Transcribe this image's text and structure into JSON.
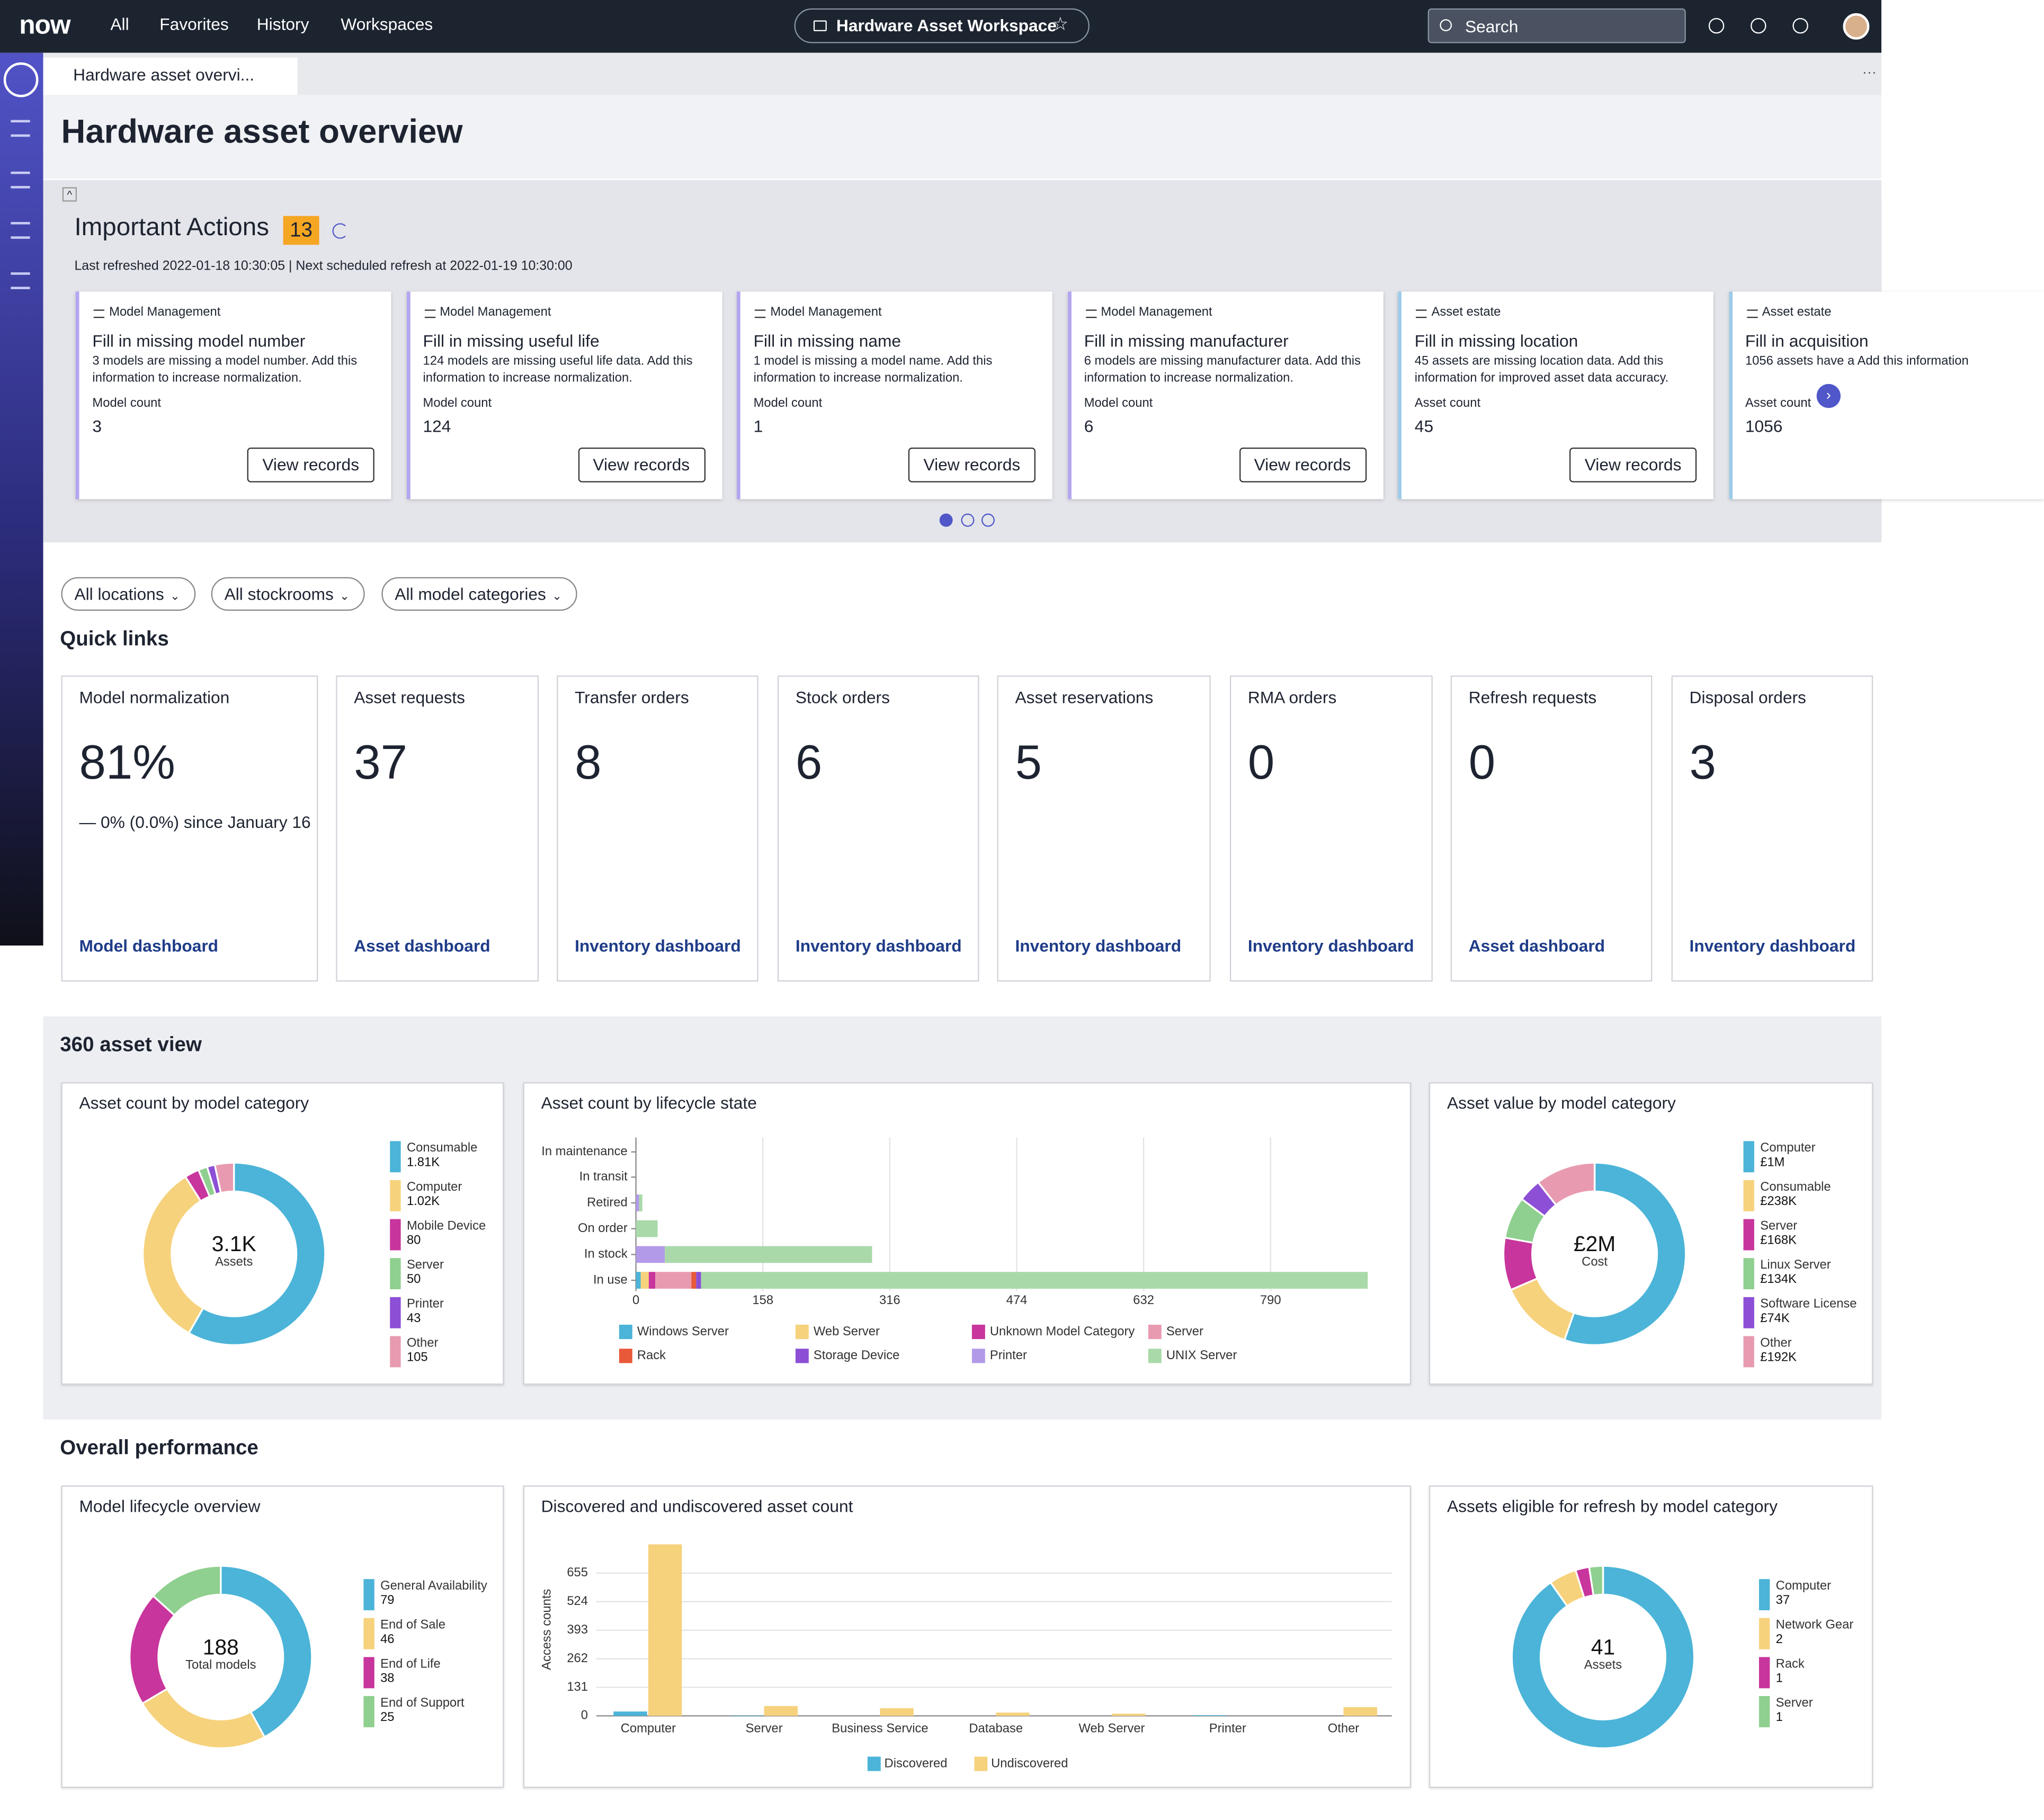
{
  "nav": {
    "logo": "now",
    "items": [
      "All",
      "Favorites",
      "History",
      "Workspaces"
    ],
    "workspace": "Hardware Asset Workspace",
    "search": "Search"
  },
  "tab": "Hardware asset overvi...",
  "page_title": "Hardware asset overview",
  "actions": {
    "title": "Important Actions",
    "count": 13,
    "refreshed": "Last refreshed 2022-01-18 10:30:05 | Next scheduled refresh at 2022-01-19 10:30:00",
    "cards": [
      {
        "category": "Model Management",
        "title": "Fill in missing model number",
        "description": "3 models are missing a model number. Add this information to increase normalization.",
        "metric_label": "Model count",
        "metric": 3,
        "button": "View records"
      },
      {
        "category": "Model Management",
        "title": "Fill in missing useful life",
        "description": "124 models are missing useful life data. Add this information to increase normalization.",
        "metric_label": "Model count",
        "metric": 124,
        "button": "View records"
      },
      {
        "category": "Model Management",
        "title": "Fill in missing name",
        "description": "1 model is missing a model name. Add this information to increase normalization.",
        "metric_label": "Model count",
        "metric": 1,
        "button": "View records"
      },
      {
        "category": "Model Management",
        "title": "Fill in missing manufacturer",
        "description": "6 models are missing manufacturer data. Add this information to increase normalization.",
        "metric_label": "Model count",
        "metric": 6,
        "button": "View records"
      },
      {
        "category": "Asset estate",
        "title": "Fill in missing location",
        "description": "45 assets are missing location data. Add this information for improved asset data accuracy.",
        "metric_label": "Asset count",
        "metric": 45,
        "button": "View records"
      },
      {
        "category": "Asset estate",
        "title": "Fill in acquisition",
        "description": "1056 assets have a Add this information",
        "metric_label": "Asset count",
        "metric": 1056
      }
    ]
  },
  "filters": [
    "All locations",
    "All stockrooms",
    "All model categories"
  ],
  "quick_links": {
    "title": "Quick links",
    "cards": [
      {
        "title": "Model normalization",
        "value": "81%",
        "note": "— 0% (0.0%) since January 16",
        "link": "Model dashboard"
      },
      {
        "title": "Asset requests",
        "value": "37",
        "link": "Asset dashboard"
      },
      {
        "title": "Transfer orders",
        "value": "8",
        "link": "Inventory dashboard"
      },
      {
        "title": "Stock orders",
        "value": "6",
        "link": "Inventory dashboard"
      },
      {
        "title": "Asset reservations",
        "value": "5",
        "link": "Inventory dashboard"
      },
      {
        "title": "RMA orders",
        "value": "0",
        "link": "Inventory dashboard"
      },
      {
        "title": "Refresh requests",
        "value": "0",
        "link": "Asset dashboard"
      },
      {
        "title": "Disposal orders",
        "value": "3",
        "link": "Inventory dashboard"
      }
    ]
  },
  "asset_view": {
    "title": "360 asset view",
    "count_chart": {
      "type": "pie",
      "title": "Asset count by model category",
      "center_value": "3.1K",
      "center_label": "Assets",
      "categories": [
        "Consumable",
        "Computer",
        "Mobile Device",
        "Server",
        "Printer",
        "Other"
      ],
      "values": [
        1810,
        1020,
        80,
        50,
        43,
        105
      ],
      "value_labels": [
        "1.81K",
        "1.02K",
        "80",
        "50",
        "43",
        "105"
      ],
      "colors": [
        "#4bb4d8",
        "#f6d27c",
        "#c8359c",
        "#8fcf8f",
        "#8c4fd6",
        "#e89bb0"
      ]
    },
    "lifecycle_chart": {
      "type": "bar",
      "orientation": "horizontal",
      "stacked": true,
      "title": "Asset count by lifecycle state",
      "categories": [
        "In maintenance",
        "In transit",
        "Retired",
        "On order",
        "In stock",
        "In use"
      ],
      "xlim": [
        0,
        941
      ],
      "xticks": [
        0,
        158,
        316,
        474,
        632,
        790
      ],
      "grid": true,
      "series": [
        {
          "name": "Windows Server",
          "color": "#4bb4d8",
          "values": [
            0,
            0,
            0,
            0,
            0,
            6
          ]
        },
        {
          "name": "Web Server",
          "color": "#f6d27c",
          "values": [
            0,
            0,
            0,
            0,
            0,
            10
          ]
        },
        {
          "name": "Unknown Model Category",
          "color": "#c8359c",
          "values": [
            0,
            0,
            0,
            0,
            0,
            8
          ]
        },
        {
          "name": "Server",
          "color": "#e89bb0",
          "values": [
            0,
            0,
            0,
            0,
            0,
            45
          ]
        },
        {
          "name": "Rack",
          "color": "#e8593a",
          "values": [
            0,
            0,
            0,
            0,
            0,
            6
          ]
        },
        {
          "name": "Storage Device",
          "color": "#8c4fd6",
          "values": [
            0,
            0,
            0,
            0,
            0,
            6
          ]
        },
        {
          "name": "Printer",
          "color": "#b39ae8",
          "values": [
            0,
            0,
            4,
            0,
            36,
            0
          ]
        },
        {
          "name": "UNIX Server",
          "color": "#a9d9a9",
          "values": [
            0,
            0,
            4,
            27,
            258,
            830
          ]
        }
      ]
    },
    "value_chart": {
      "type": "pie",
      "title": "Asset value by model category",
      "center_value": "£2M",
      "center_label": "Cost",
      "categories": [
        "Computer",
        "Consumable",
        "Server",
        "Linux Server",
        "Software License",
        "Other"
      ],
      "values": [
        1000000,
        238000,
        168000,
        134000,
        74000,
        192000
      ],
      "value_labels": [
        "£1M",
        "£238K",
        "£168K",
        "£134K",
        "£74K",
        "£192K"
      ],
      "colors": [
        "#4bb4d8",
        "#f6d27c",
        "#c8359c",
        "#8fcf8f",
        "#8c4fd6",
        "#e89bb0"
      ]
    }
  },
  "performance": {
    "title": "Overall performance",
    "lifecycle_chart": {
      "type": "pie",
      "title": "Model lifecycle overview",
      "center_value": "188",
      "center_label": "Total models",
      "categories": [
        "General Availability",
        "End of Sale",
        "End of Life",
        "End of Support"
      ],
      "values": [
        79,
        46,
        38,
        25
      ],
      "colors": [
        "#4bb4d8",
        "#f6d27c",
        "#c8359c",
        "#8fcf8f"
      ]
    },
    "discovery_chart": {
      "type": "bar",
      "title": "Discovered and undiscovered asset count",
      "y_label": "Access counts",
      "categories": [
        "Computer",
        "Server",
        "Business Service",
        "Database",
        "Web Server",
        "Printer",
        "Other"
      ],
      "ylim": [
        0,
        800
      ],
      "yticks": [
        0,
        131,
        262,
        393,
        524,
        655
      ],
      "grid": true,
      "series": [
        {
          "name": "Discovered",
          "color": "#4bb4d8",
          "values": [
            20,
            2,
            0,
            0,
            0,
            3,
            0
          ]
        },
        {
          "name": "Undiscovered",
          "color": "#f6d27c",
          "values": [
            787,
            45,
            35,
            15,
            10,
            0,
            40
          ]
        }
      ]
    },
    "refresh_chart": {
      "type": "pie",
      "title": "Assets eligible for refresh by model category",
      "center_value": "41",
      "center_label": "Assets",
      "categories": [
        "Computer",
        "Network Gear",
        "Rack",
        "Server"
      ],
      "values": [
        37,
        2,
        1,
        1
      ],
      "colors": [
        "#4bb4d8",
        "#f6d27c",
        "#c8359c",
        "#8fcf8f"
      ]
    }
  }
}
